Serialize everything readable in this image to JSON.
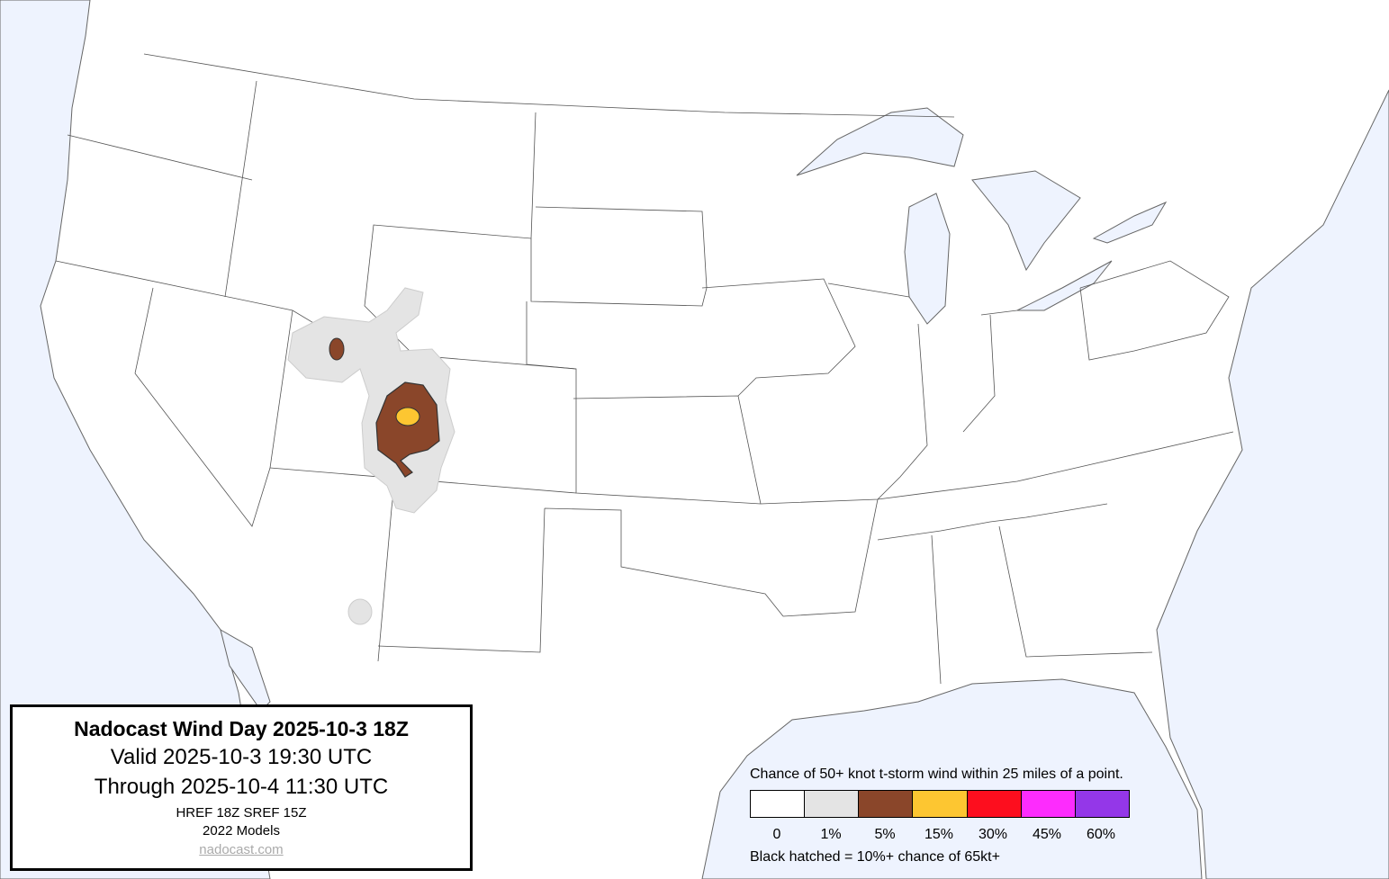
{
  "title_box": {
    "title": "Nadocast Wind Day 2025-10-3 18Z",
    "valid": "Valid 2025-10-3 19:30 UTC",
    "through": "Through 2025-10-4 11:30 UTC",
    "models": "HREF 18Z SREF 15Z",
    "model_version": "2022 Models",
    "link": "nadocast.com"
  },
  "legend": {
    "title": "Chance of 50+ knot t-storm wind within 25 miles of a point.",
    "levels": [
      {
        "label": "0",
        "color": "#ffffff"
      },
      {
        "label": "1%",
        "color": "#e4e4e4"
      },
      {
        "label": "5%",
        "color": "#8a462a"
      },
      {
        "label": "15%",
        "color": "#fdc631"
      },
      {
        "label": "30%",
        "color": "#fd0e1e"
      },
      {
        "label": "45%",
        "color": "#fd2cfd"
      },
      {
        "label": "60%",
        "color": "#9437e8"
      }
    ],
    "hatch_note": "Black hatched = 10%+ chance of 65kt+"
  },
  "map": {
    "water_color": "#eef3fe",
    "forecast_regions": [
      {
        "area": "Utah / Wyoming / Colorado",
        "level": "1%"
      },
      {
        "area": "Northern Utah",
        "level": "5%"
      },
      {
        "area": "Western Colorado / Eastern Utah",
        "level": "5%"
      },
      {
        "area": "Western Colorado",
        "level": "15%"
      },
      {
        "area": "Southeast Arizona",
        "level": "1%"
      }
    ]
  }
}
